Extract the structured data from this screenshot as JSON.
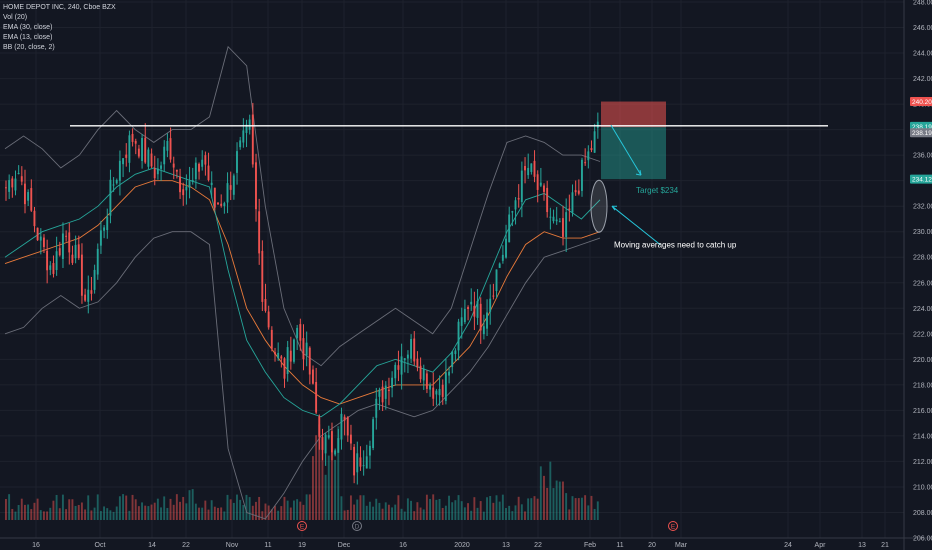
{
  "legend": {
    "title": "HOME DEPOT INC, 240, Cboe BZX",
    "vol": "Vol (20)",
    "ema30": "EMA (30, close)",
    "ema13": "EMA (13, close)",
    "bb": "BB (20, close, 2)"
  },
  "annotations": {
    "target": "Target $234",
    "note": "Moving averages need to catch up"
  },
  "price_badges": [
    {
      "label": "240.20",
      "value": 240.2,
      "color": "#ef5350"
    },
    {
      "label": "238.19",
      "value": 238.25,
      "color": "#26a69a"
    },
    {
      "label": "238.19",
      "value": 237.75,
      "color": "#787b86"
    },
    {
      "label": "234.12",
      "value": 234.12,
      "color": "#26a69a"
    }
  ],
  "event_markers": [
    {
      "label": "E",
      "color": "#ef5350"
    },
    {
      "label": "D",
      "color": "#787b86"
    },
    {
      "label": "E",
      "color": "#ef5350"
    }
  ],
  "chart_data": {
    "type": "candlestick",
    "symbol": "HOME DEPOT INC",
    "interval": "240",
    "exchange": "Cboe BZX",
    "y_axis": {
      "range": [
        206,
        248
      ],
      "ticks": [
        "248.00",
        "246.00",
        "244.00",
        "242.00",
        "240.00",
        "238.00",
        "236.00",
        "234.00",
        "232.00",
        "230.00",
        "228.00",
        "226.00",
        "224.00",
        "222.00",
        "220.00",
        "218.00",
        "216.00",
        "214.00",
        "212.00",
        "210.00",
        "208.00",
        "206.00"
      ]
    },
    "x_axis": {
      "ticks": [
        "16",
        "Oct",
        "14",
        "22",
        "Nov",
        "11",
        "19",
        "Dec",
        "16",
        "2020",
        "13",
        "22",
        "Feb",
        "11",
        "20",
        "Mar",
        "24",
        "Apr",
        "13",
        "21"
      ]
    },
    "price_path": [
      {
        "p": 233.5
      },
      {
        "p": 235.0
      },
      {
        "p": 232.0
      },
      {
        "p": 229.0
      },
      {
        "p": 227.0
      },
      {
        "p": 230.0
      },
      {
        "p": 228.0
      },
      {
        "p": 224.0
      },
      {
        "p": 229.0
      },
      {
        "p": 233.0
      },
      {
        "p": 236.0
      },
      {
        "p": 237.5
      },
      {
        "p": 236.0
      },
      {
        "p": 234.5
      },
      {
        "p": 237.0
      },
      {
        "p": 234.0
      },
      {
        "p": 233.5
      },
      {
        "p": 236.0
      },
      {
        "p": 232.0
      },
      {
        "p": 233.0
      },
      {
        "p": 236.0
      },
      {
        "p": 238.0
      },
      {
        "p": 226.0
      },
      {
        "p": 221.0
      },
      {
        "p": 219.0
      },
      {
        "p": 222.5
      },
      {
        "p": 220.0
      },
      {
        "p": 214.0
      },
      {
        "p": 213.0
      },
      {
        "p": 215.5
      },
      {
        "p": 211.5
      },
      {
        "p": 213.0
      },
      {
        "p": 216.5
      },
      {
        "p": 218.5
      },
      {
        "p": 220.5
      },
      {
        "p": 221.0
      },
      {
        "p": 219.0
      },
      {
        "p": 217.5
      },
      {
        "p": 218.5
      },
      {
        "p": 222.0
      },
      {
        "p": 225.0
      },
      {
        "p": 223.0
      },
      {
        "p": 226.0
      },
      {
        "p": 229.0
      },
      {
        "p": 233.0
      },
      {
        "p": 235.0
      },
      {
        "p": 233.0
      },
      {
        "p": 231.0
      },
      {
        "p": 229.5
      },
      {
        "p": 233.0
      },
      {
        "p": 235.5
      },
      {
        "p": 238.0
      }
    ],
    "ema13": [
      228.0,
      229.0,
      230.0,
      230.5,
      231.0,
      232.0,
      233.5,
      234.5,
      235.0,
      234.5,
      234.0,
      233.5,
      227.0,
      221.5,
      219.0,
      217.0,
      216.0,
      215.5,
      216.5,
      218.0,
      219.5,
      220.0,
      219.5,
      219.0,
      220.5,
      223.0,
      226.5,
      230.0,
      232.5,
      233.0,
      232.0,
      231.0,
      232.5
    ],
    "ema30": [
      227.5,
      228.0,
      228.5,
      229.0,
      229.5,
      230.5,
      232.0,
      233.5,
      234.0,
      234.0,
      233.5,
      232.5,
      229.0,
      224.0,
      221.5,
      219.5,
      218.0,
      217.0,
      216.5,
      217.0,
      217.5,
      218.0,
      218.0,
      218.0,
      219.5,
      221.0,
      223.5,
      226.5,
      229.0,
      230.0,
      229.5,
      229.5,
      230.0
    ],
    "bb_upper": [
      236.5,
      237.5,
      236.5,
      235.0,
      236.0,
      238.0,
      239.5,
      238.0,
      237.0,
      238.0,
      238.0,
      239.0,
      244.5,
      243.0,
      232.0,
      224.0,
      220.5,
      219.5,
      221.0,
      222.0,
      223.0,
      224.0,
      223.0,
      222.0,
      224.0,
      228.5,
      233.0,
      237.0,
      237.5,
      237.0,
      236.0,
      236.0,
      235.5
    ],
    "bb_lower": [
      222.0,
      222.5,
      224.0,
      225.0,
      224.0,
      224.5,
      226.0,
      228.0,
      229.5,
      230.0,
      230.0,
      229.0,
      213.0,
      208.0,
      207.5,
      209.5,
      212.0,
      214.0,
      215.0,
      216.0,
      216.5,
      216.0,
      215.5,
      216.0,
      217.5,
      219.0,
      221.0,
      223.5,
      226.0,
      228.0,
      228.5,
      229.0,
      229.5
    ],
    "resistance_line": {
      "price": 238.3
    },
    "position": {
      "entry": 238.19,
      "stop": 240.2,
      "target": 234.12
    }
  }
}
